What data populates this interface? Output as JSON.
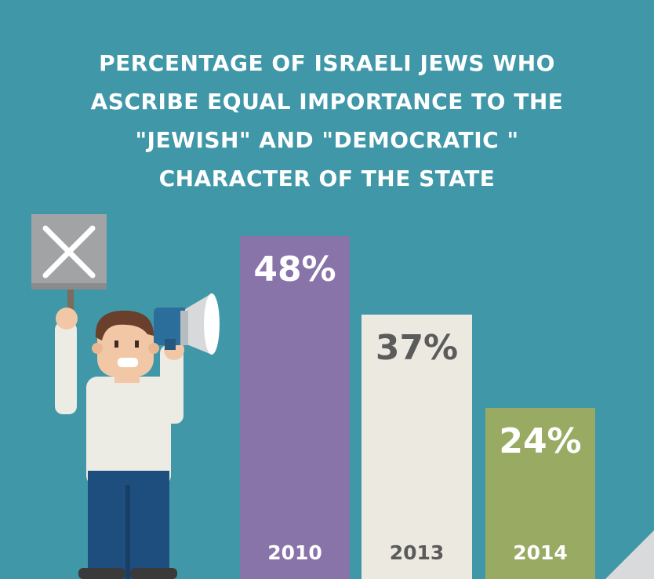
{
  "title_lines": [
    "PERCENTAGE OF ISRAELI JEWS WHO",
    "ASCRIBE EQUAL IMPORTANCE TO THE",
    "\"JEWISH\" AND \"DEMOCRATIC \"",
    "CHARACTER OF THE STATE"
  ],
  "colors": {
    "background": "#3f97a8",
    "bar_2010": "#8874a9",
    "bar_2013": "#ece9e0",
    "bar_2014": "#99ab63",
    "label_light": "#ffffff",
    "label_dark": "#5b5b5b"
  },
  "illustration": "man-holding-protest-sign-and-megaphone",
  "chart_data": {
    "type": "bar",
    "categories": [
      "2010",
      "2013",
      "2014"
    ],
    "values": [
      48,
      37,
      24
    ],
    "value_labels": [
      "48%",
      "37%",
      "24%"
    ],
    "ylim": [
      0,
      52
    ],
    "grid": false,
    "legend": "none"
  }
}
